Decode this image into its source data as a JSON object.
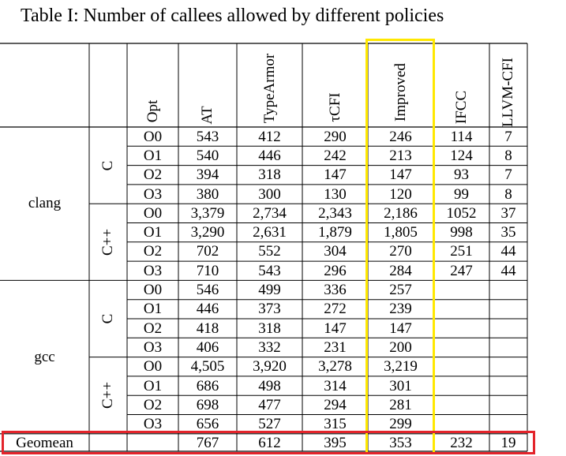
{
  "caption": "Table I: Number of callees allowed by different policies",
  "headers": [
    "Opt",
    "AT",
    "TypeArmor",
    "τCFI",
    "Improved",
    "IFCC",
    "LLVM-CFI"
  ],
  "groups": [
    {
      "compiler": "clang",
      "langs": [
        {
          "lang": "C",
          "rows": [
            [
              "O0",
              "543",
              "412",
              "290",
              "246",
              "114",
              "7"
            ],
            [
              "O1",
              "540",
              "446",
              "242",
              "213",
              "124",
              "8"
            ],
            [
              "O2",
              "394",
              "318",
              "147",
              "147",
              "93",
              "7"
            ],
            [
              "O3",
              "380",
              "300",
              "130",
              "120",
              "99",
              "8"
            ]
          ]
        },
        {
          "lang": "C++",
          "rows": [
            [
              "O0",
              "3,379",
              "2,734",
              "2,343",
              "2,186",
              "1052",
              "37"
            ],
            [
              "O1",
              "3,290",
              "2,631",
              "1,879",
              "1,805",
              "998",
              "35"
            ],
            [
              "O2",
              "702",
              "552",
              "304",
              "270",
              "251",
              "44"
            ],
            [
              "O3",
              "710",
              "543",
              "296",
              "284",
              "247",
              "44"
            ]
          ]
        }
      ]
    },
    {
      "compiler": "gcc",
      "langs": [
        {
          "lang": "C",
          "rows": [
            [
              "O0",
              "546",
              "499",
              "336",
              "257",
              "",
              ""
            ],
            [
              "O1",
              "446",
              "373",
              "272",
              "239",
              "",
              ""
            ],
            [
              "O2",
              "418",
              "318",
              "147",
              "147",
              "",
              ""
            ],
            [
              "O3",
              "406",
              "332",
              "231",
              "200",
              "",
              ""
            ]
          ]
        },
        {
          "lang": "C++",
          "rows": [
            [
              "O0",
              "4,505",
              "3,920",
              "3,278",
              "3,219",
              "",
              ""
            ],
            [
              "O1",
              "686",
              "498",
              "314",
              "301",
              "",
              ""
            ],
            [
              "O2",
              "698",
              "477",
              "294",
              "281",
              "",
              ""
            ],
            [
              "O3",
              "656",
              "527",
              "315",
              "299",
              "",
              ""
            ]
          ]
        }
      ]
    }
  ],
  "geomean": {
    "label": "Geomean",
    "values": [
      "767",
      "612",
      "395",
      "353",
      "232",
      "19"
    ]
  },
  "highlight_colors": {
    "column_box": "#ffe800",
    "row_box": "#e3242b"
  }
}
